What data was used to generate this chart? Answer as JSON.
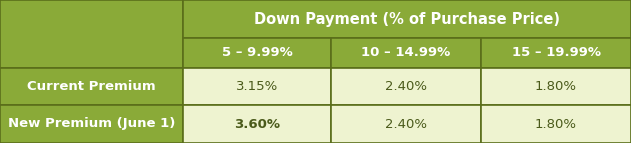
{
  "header_main": "Down Payment (% of Purchase Price)",
  "col_headers": [
    "5 – 9.99%",
    "10 – 14.99%",
    "15 – 19.99%"
  ],
  "rows": [
    {
      "label": "Current Premium",
      "values": [
        "3.15%",
        "2.40%",
        "1.80%"
      ],
      "bold_values": [
        false,
        false,
        false
      ]
    },
    {
      "label": "New Premium (June 1)",
      "values": [
        "3.60%",
        "2.40%",
        "1.80%"
      ],
      "bold_values": [
        true,
        false,
        false
      ]
    }
  ],
  "green_bg": "#8aaa38",
  "light_green_bg": "#eef3d0",
  "white_bg": "#ffffff",
  "border_color": "#5a6e1a",
  "header_text_color": "#ffffff",
  "row_label_text_color": "#ffffff",
  "value_text_color": "#4a5a1a",
  "font_size_header": 10.5,
  "font_size_col": 9.5,
  "font_size_row": 9.5,
  "fig_width": 6.31,
  "fig_height": 1.43
}
